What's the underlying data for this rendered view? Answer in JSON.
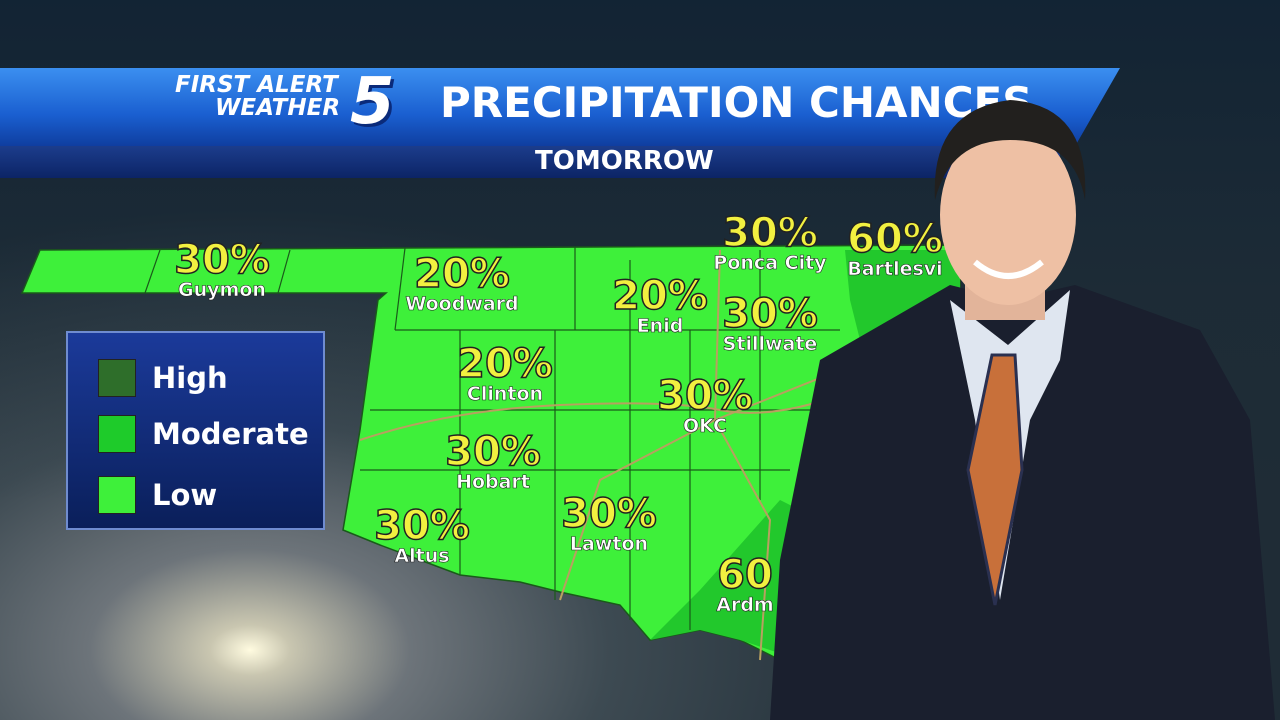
{
  "header": {
    "logo_line1": "FIRST ALERT",
    "logo_line2": "WEATHER",
    "logo_number": "5",
    "title": "PRECIPITATION CHANCES",
    "subtitle": "TOMORROW"
  },
  "legend": {
    "items": [
      {
        "label": "High",
        "color": "#2e6e2a"
      },
      {
        "label": "Moderate",
        "color": "#1ecb2a"
      },
      {
        "label": "Low",
        "color": "#3ef03a"
      }
    ]
  },
  "colors": {
    "low": "#3ef03a",
    "moderate": "#1ecb2a",
    "pct_text": "#f2f040"
  },
  "cities": [
    {
      "name": "Guymon",
      "pct": "30%"
    },
    {
      "name": "Woodward",
      "pct": "20%"
    },
    {
      "name": "Enid",
      "pct": "20%"
    },
    {
      "name": "Ponca City",
      "pct": "30%"
    },
    {
      "name": "Bartlesvi",
      "pct": "60%"
    },
    {
      "name": "Stillwate",
      "pct": "30%"
    },
    {
      "name": "Clinton",
      "pct": "20%"
    },
    {
      "name": "OKC",
      "pct": "30%"
    },
    {
      "name": "Hobart",
      "pct": "30%"
    },
    {
      "name": "Altus",
      "pct": "30%"
    },
    {
      "name": "Lawton",
      "pct": "30%"
    },
    {
      "name": "Ardm",
      "pct": "60"
    }
  ]
}
